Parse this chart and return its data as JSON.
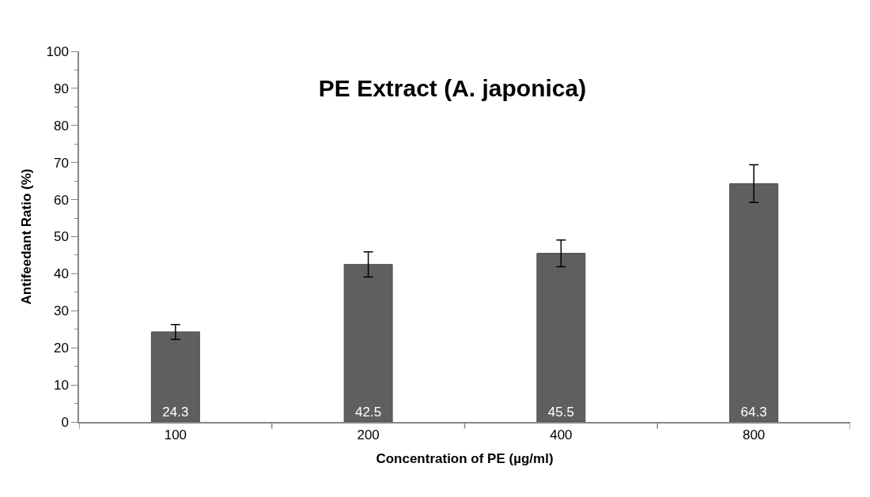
{
  "chart_data": {
    "type": "bar",
    "title": "PE Extract (A. japonica)",
    "xlabel": "Concentration of PE (µg/ml)",
    "ylabel": "Antifeedant Ratio (%)",
    "categories": [
      "100",
      "200",
      "400",
      "800"
    ],
    "values": [
      24.3,
      42.5,
      45.5,
      64.3
    ],
    "errors": [
      2.0,
      3.4,
      3.6,
      5.1
    ],
    "color": "#5f5f5f",
    "data_labels": true,
    "ylim": [
      0,
      100
    ],
    "yticks": [
      0,
      10,
      20,
      30,
      40,
      50,
      60,
      70,
      80,
      90,
      100
    ]
  }
}
